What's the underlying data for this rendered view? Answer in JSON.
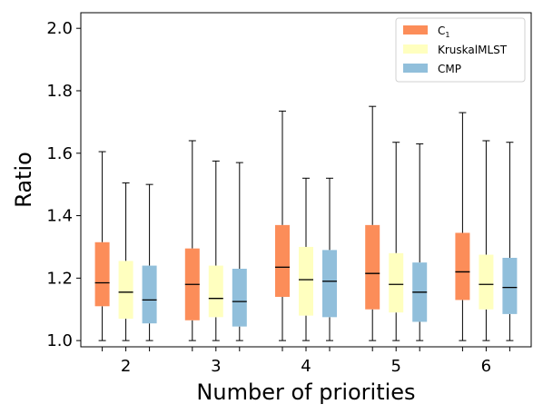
{
  "chart_data": {
    "type": "box",
    "xlabel": "Number of priorities",
    "ylabel": "Ratio",
    "categories": [
      "2",
      "3",
      "4",
      "5",
      "6"
    ],
    "ylim": [
      0.98,
      2.05
    ],
    "yticks": [
      "1.0",
      "1.2",
      "1.4",
      "1.6",
      "1.8",
      "2.0"
    ],
    "ytick_values": [
      1.0,
      1.2,
      1.4,
      1.6,
      1.8,
      2.0
    ],
    "grid": false,
    "legend_position": "top-right",
    "series": [
      {
        "name": "C",
        "name_subscript": "1",
        "color": "#fc8d59",
        "boxes": [
          {
            "min": 1.0,
            "q1": 1.11,
            "median": 1.185,
            "q3": 1.315,
            "max": 1.605
          },
          {
            "min": 1.0,
            "q1": 1.065,
            "median": 1.18,
            "q3": 1.295,
            "max": 1.64
          },
          {
            "min": 1.0,
            "q1": 1.14,
            "median": 1.235,
            "q3": 1.37,
            "max": 1.735
          },
          {
            "min": 1.0,
            "q1": 1.1,
            "median": 1.215,
            "q3": 1.37,
            "max": 1.75
          },
          {
            "min": 1.0,
            "q1": 1.13,
            "median": 1.22,
            "q3": 1.345,
            "max": 1.73
          }
        ]
      },
      {
        "name": "KruskalMLST",
        "color": "#ffffbf",
        "boxes": [
          {
            "min": 1.0,
            "q1": 1.07,
            "median": 1.155,
            "q3": 1.255,
            "max": 1.505
          },
          {
            "min": 1.0,
            "q1": 1.075,
            "median": 1.135,
            "q3": 1.24,
            "max": 1.575
          },
          {
            "min": 1.0,
            "q1": 1.08,
            "median": 1.195,
            "q3": 1.3,
            "max": 1.52
          },
          {
            "min": 1.0,
            "q1": 1.09,
            "median": 1.18,
            "q3": 1.28,
            "max": 1.635
          },
          {
            "min": 1.0,
            "q1": 1.1,
            "median": 1.18,
            "q3": 1.275,
            "max": 1.64
          }
        ]
      },
      {
        "name": "CMP",
        "color": "#91bfdb",
        "boxes": [
          {
            "min": 1.0,
            "q1": 1.055,
            "median": 1.13,
            "q3": 1.24,
            "max": 1.5
          },
          {
            "min": 1.0,
            "q1": 1.045,
            "median": 1.125,
            "q3": 1.23,
            "max": 1.57
          },
          {
            "min": 1.0,
            "q1": 1.075,
            "median": 1.19,
            "q3": 1.29,
            "max": 1.52
          },
          {
            "min": 1.0,
            "q1": 1.06,
            "median": 1.155,
            "q3": 1.25,
            "max": 1.63
          },
          {
            "min": 1.0,
            "q1": 1.085,
            "median": 1.17,
            "q3": 1.265,
            "max": 1.635
          }
        ]
      }
    ]
  }
}
